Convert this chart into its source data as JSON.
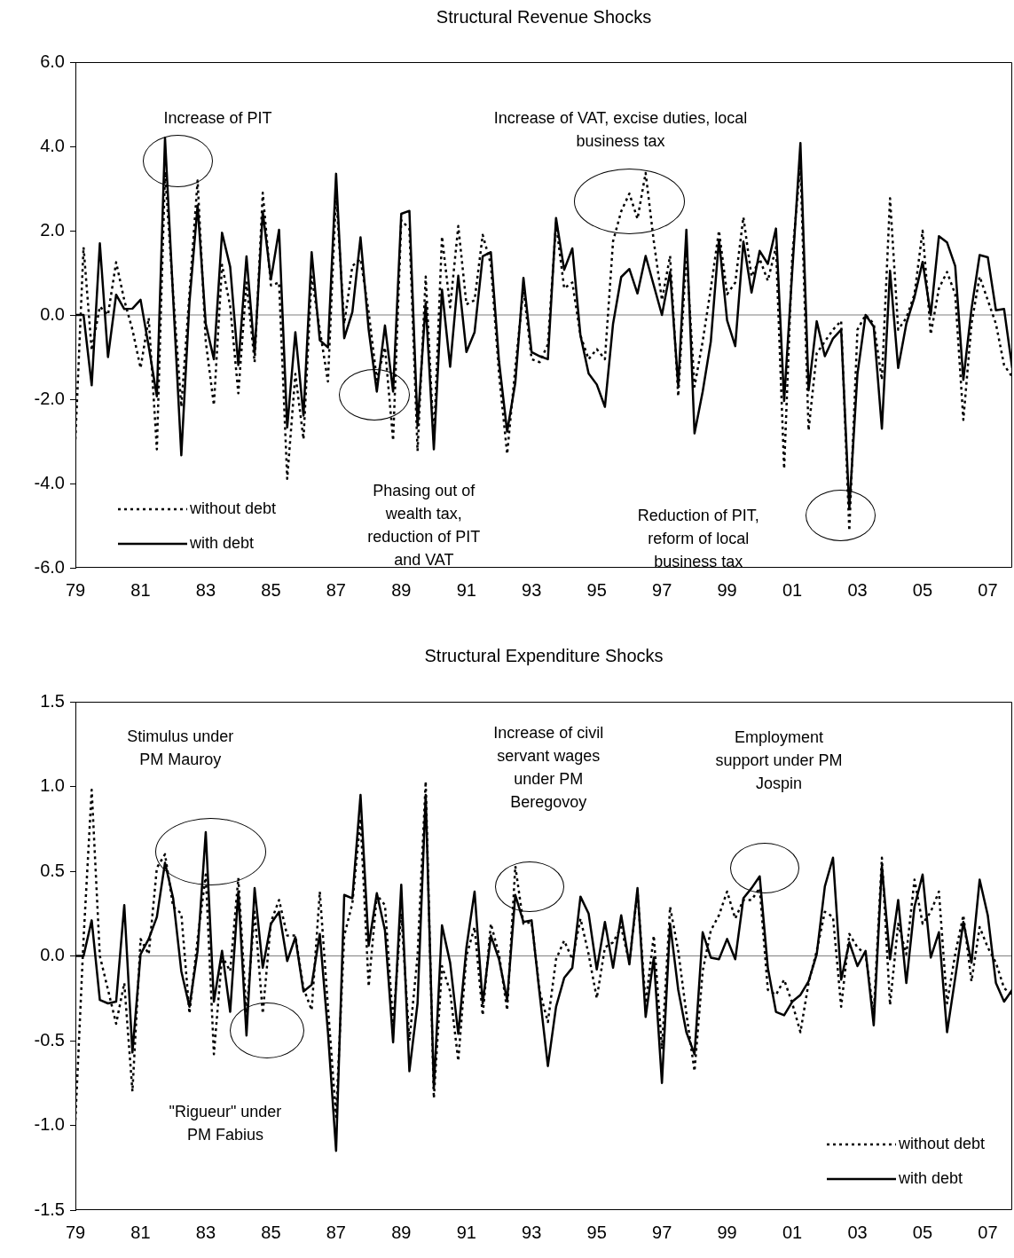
{
  "chart_data": [
    {
      "type": "line",
      "title": "Structural Revenue Shocks",
      "x": [
        1979,
        1979.25,
        1979.5,
        1979.75,
        1980,
        1980.25,
        1980.5,
        1980.75,
        1981,
        1981.25,
        1981.5,
        1981.75,
        1982,
        1982.25,
        1982.5,
        1982.75,
        1983,
        1983.25,
        1983.5,
        1983.75,
        1984,
        1984.25,
        1984.5,
        1984.75,
        1985,
        1985.25,
        1985.5,
        1985.75,
        1986,
        1986.25,
        1986.5,
        1986.75,
        1987,
        1987.25,
        1987.5,
        1987.75,
        1988,
        1988.25,
        1988.5,
        1988.75,
        1989,
        1989.25,
        1989.5,
        1989.75,
        1990,
        1990.25,
        1990.5,
        1990.75,
        1991,
        1991.25,
        1991.5,
        1991.75,
        1992,
        1992.25,
        1992.5,
        1992.75,
        1993,
        1993.25,
        1993.5,
        1993.75,
        1994,
        1994.25,
        1994.5,
        1994.75,
        1995,
        1995.25,
        1995.5,
        1995.75,
        1996,
        1996.25,
        1996.5,
        1996.75,
        1997,
        1997.25,
        1997.5,
        1997.75,
        1998,
        1998.25,
        1998.5,
        1998.75,
        1999,
        1999.25,
        1999.5,
        1999.75,
        2000,
        2000.25,
        2000.5,
        2000.75,
        2001,
        2001.25,
        2001.5,
        2001.75,
        2002,
        2002.25,
        2002.5,
        2002.75,
        2003,
        2003.25,
        2003.5,
        2003.75,
        2004,
        2004.25,
        2004.5,
        2004.75,
        2005,
        2005.25,
        2005.5,
        2005.75,
        2006,
        2006.25,
        2006.5,
        2006.75,
        2007,
        2007.25,
        2007.5,
        2007.75
      ],
      "series": [
        {
          "name": "without debt",
          "color": "#000000",
          "line_style": "dotted",
          "values": [
            -2.95,
            1.61,
            -0.84,
            0.2,
            0,
            1.25,
            0.35,
            -0.35,
            -1.26,
            -0.07,
            -3.19,
            3.4,
            0.5,
            -2.18,
            0.5,
            3.19,
            -0.63,
            -2.14,
            1.19,
            0.21,
            -1.86,
            0.77,
            -1.12,
            2.9,
            0.7,
            0.77,
            -3.89,
            -1.4,
            -2.95,
            0.91,
            -0.35,
            -1.58,
            2.88,
            -0.21,
            1.16,
            1.33,
            0.07,
            -1.54,
            -0.77,
            -2.98,
            2.25,
            2.04,
            -3.23,
            0.91,
            -3.0,
            1.86,
            0.18,
            2.11,
            0.25,
            0.35,
            1.9,
            1.2,
            -1.4,
            -3.3,
            -1.26,
            0.63,
            -1.05,
            -1.12,
            -0.7,
            2.18,
            0.63,
            0.77,
            -0.49,
            -1.05,
            -0.81,
            -1.05,
            1.75,
            2.46,
            2.88,
            2.28,
            3.37,
            1.75,
            0.35,
            1.4,
            -1.93,
            1.47,
            -1.7,
            -0.63,
            0.63,
            2.0,
            0.49,
            0.77,
            2.32,
            0.91,
            1.33,
            0.81,
            1.61,
            -3.65,
            1.4,
            3.58,
            -2.74,
            -0.91,
            -0.63,
            -0.35,
            -0.14,
            -5.12,
            -0.35,
            0,
            -0.21,
            -1.54,
            2.77,
            -0.35,
            -0.07,
            0.49,
            2.0,
            -0.46,
            0.63,
            1.02,
            0.49,
            -2.49,
            -0.21,
            0.91,
            0.35,
            -0.21,
            -1.19,
            -1.47
          ]
        },
        {
          "name": "with debt",
          "color": "#000000",
          "line_style": "solid",
          "values": [
            0,
            0,
            -1.67,
            1.7,
            -1.0,
            0.48,
            0.14,
            0.15,
            0.36,
            -0.75,
            -1.93,
            4.2,
            0.4,
            -3.33,
            0.3,
            2.6,
            -0.21,
            -1.05,
            1.95,
            1.14,
            -1.19,
            1.39,
            -0.91,
            2.45,
            0.84,
            2.02,
            -2.67,
            -0.41,
            -2.39,
            1.49,
            -0.6,
            -0.77,
            3.35,
            -0.55,
            0.07,
            1.84,
            -0.35,
            -1.82,
            -0.25,
            -1.82,
            2.4,
            2.47,
            -2.63,
            0.28,
            -3.19,
            0.6,
            -1.23,
            0.93,
            -0.88,
            -0.41,
            1.39,
            1.49,
            -1.1,
            -2.77,
            -1.61,
            0.88,
            -0.88,
            -0.98,
            -1.05,
            2.3,
            1.07,
            1.58,
            -0.49,
            -1.39,
            -1.65,
            -2.18,
            -0.21,
            0.9,
            1.09,
            0.51,
            1.4,
            0.7,
            0,
            1.02,
            -1.68,
            2.02,
            -2.81,
            -1.82,
            -0.63,
            1.79,
            -0.13,
            -0.74,
            1.74,
            0.53,
            1.52,
            1.21,
            2.05,
            -2.04,
            1.05,
            4.08,
            -1.79,
            -0.15,
            -0.98,
            -0.56,
            -0.35,
            -4.6,
            -1.4,
            0,
            -0.28,
            -2.7,
            1.05,
            -1.26,
            -0.21,
            0.42,
            1.26,
            0,
            1.87,
            1.72,
            1.16,
            -1.54,
            0.14,
            1.42,
            1.37,
            0.11,
            0.14,
            -1.26
          ]
        }
      ],
      "xlim": [
        1979,
        2007.75
      ],
      "xticks": [
        {
          "value": 1979,
          "label": "79"
        },
        {
          "value": 1981,
          "label": "81"
        },
        {
          "value": 1983,
          "label": "83"
        },
        {
          "value": 1985,
          "label": "85"
        },
        {
          "value": 1987,
          "label": "87"
        },
        {
          "value": 1989,
          "label": "89"
        },
        {
          "value": 1991,
          "label": "91"
        },
        {
          "value": 1993,
          "label": "93"
        },
        {
          "value": 1995,
          "label": "95"
        },
        {
          "value": 1997,
          "label": "97"
        },
        {
          "value": 1999,
          "label": "99"
        },
        {
          "value": 2001,
          "label": "01"
        },
        {
          "value": 2003,
          "label": "03"
        },
        {
          "value": 2005,
          "label": "05"
        },
        {
          "value": 2007,
          "label": "07"
        }
      ],
      "ylim": [
        -6,
        6
      ],
      "yticks": [
        {
          "value": -6,
          "label": "-6.0"
        },
        {
          "value": -4,
          "label": "-4.0"
        },
        {
          "value": -2,
          "label": "-2.0"
        },
        {
          "value": 0,
          "label": "0.0"
        },
        {
          "value": 2,
          "label": "2.0"
        },
        {
          "value": 4,
          "label": "4.0"
        },
        {
          "value": 6,
          "label": "6.0"
        }
      ],
      "ref_lines": [
        {
          "axis": "y",
          "value": 0,
          "color": "#808080"
        }
      ],
      "annotations": [
        "Increase of PIT",
        "Increase of VAT, excise duties, local business tax",
        "Phasing out of wealth tax, reduction of PIT and VAT",
        "Reduction of PIT, reform of local business tax"
      ],
      "legend": "bottom left",
      "marker": "none"
    },
    {
      "type": "line",
      "title": "Structural Expenditure Shocks",
      "x": [
        1979,
        1979.25,
        1979.5,
        1979.75,
        1980,
        1980.25,
        1980.5,
        1980.75,
        1981,
        1981.25,
        1981.5,
        1981.75,
        1982,
        1982.25,
        1982.5,
        1982.75,
        1983,
        1983.25,
        1983.5,
        1983.75,
        1984,
        1984.25,
        1984.5,
        1984.75,
        1985,
        1985.25,
        1985.5,
        1985.75,
        1986,
        1986.25,
        1986.5,
        1986.75,
        1987,
        1987.25,
        1987.5,
        1987.75,
        1988,
        1988.25,
        1988.5,
        1988.75,
        1989,
        1989.25,
        1989.5,
        1989.75,
        1990,
        1990.25,
        1990.5,
        1990.75,
        1991,
        1991.25,
        1991.5,
        1991.75,
        1992,
        1992.25,
        1992.5,
        1992.75,
        1993,
        1993.25,
        1993.5,
        1993.75,
        1994,
        1994.25,
        1994.5,
        1994.75,
        1995,
        1995.25,
        1995.5,
        1995.75,
        1996,
        1996.25,
        1996.5,
        1996.75,
        1997,
        1997.25,
        1997.5,
        1997.75,
        1998,
        1998.25,
        1998.5,
        1998.75,
        1999,
        1999.25,
        1999.5,
        1999.75,
        2000,
        2000.25,
        2000.5,
        2000.75,
        2001,
        2001.25,
        2001.5,
        2001.75,
        2002,
        2002.25,
        2002.5,
        2002.75,
        2003,
        2003.25,
        2003.5,
        2003.75,
        2004,
        2004.25,
        2004.5,
        2004.75,
        2005,
        2005.25,
        2005.5,
        2005.75,
        2006,
        2006.25,
        2006.5,
        2006.75,
        2007,
        2007.25,
        2007.5,
        2007.75
      ],
      "series": [
        {
          "name": "without debt",
          "color": "#000000",
          "line_style": "dotted",
          "values": [
            -0.97,
            0.1,
            0.98,
            0,
            -0.2,
            -0.4,
            -0.16,
            -0.8,
            0.1,
            0.01,
            0.52,
            0.6,
            0.29,
            0.25,
            -0.34,
            0.1,
            0.48,
            -0.58,
            0,
            -0.09,
            0.46,
            -0.34,
            0.26,
            -0.34,
            0.2,
            0.33,
            0.12,
            0.12,
            -0.19,
            -0.32,
            0.38,
            -0.3,
            -0.95,
            0.12,
            0.31,
            0.81,
            -0.18,
            0.36,
            0.3,
            -0.4,
            0.25,
            -0.5,
            0,
            1.03,
            -0.84,
            -0.06,
            -0.21,
            -0.62,
            0,
            0.17,
            -0.35,
            0.19,
            0.01,
            -0.32,
            0.53,
            0.19,
            0.2,
            -0.21,
            -0.39,
            -0.02,
            0.09,
            -0.02,
            0.22,
            0.01,
            -0.25,
            0.05,
            0.08,
            0.17,
            -0.04,
            0.38,
            -0.28,
            0.12,
            -0.55,
            0.29,
            0.03,
            -0.34,
            -0.68,
            -0.09,
            0.15,
            0.24,
            0.38,
            0.22,
            0.33,
            0.33,
            0.4,
            -0.2,
            -0.23,
            -0.14,
            -0.28,
            -0.45,
            -0.16,
            0.03,
            0.26,
            0.23,
            -0.3,
            0.13,
            0.05,
            0.01,
            -0.34,
            0.58,
            -0.29,
            0.19,
            0.01,
            0.45,
            0.19,
            0.26,
            0.38,
            -0.28,
            0.01,
            0.24,
            -0.15,
            0.17,
            0.05,
            -0.04,
            -0.19,
            -0.23
          ]
        },
        {
          "name": "with debt",
          "color": "#000000",
          "line_style": "solid",
          "values": [
            0,
            0,
            0.21,
            -0.26,
            -0.28,
            -0.27,
            0.3,
            -0.57,
            0.01,
            0.1,
            0.23,
            0.55,
            0.34,
            -0.09,
            -0.3,
            0.03,
            0.73,
            -0.27,
            0.03,
            -0.33,
            0.38,
            -0.47,
            0.4,
            -0.07,
            0.19,
            0.26,
            -0.03,
            0.11,
            -0.21,
            -0.17,
            0.13,
            -0.45,
            -1.15,
            0.36,
            0.34,
            0.95,
            0.06,
            0.37,
            0.15,
            -0.51,
            0.42,
            -0.68,
            -0.28,
            0.95,
            -0.78,
            0.18,
            -0.04,
            -0.46,
            0.05,
            0.38,
            -0.28,
            0.12,
            -0.02,
            -0.26,
            0.36,
            0.2,
            0.21,
            -0.23,
            -0.65,
            -0.3,
            -0.13,
            -0.07,
            0.35,
            0.25,
            -0.08,
            0.2,
            -0.07,
            0.24,
            -0.05,
            0.4,
            -0.36,
            -0.01,
            -0.75,
            0.19,
            -0.2,
            -0.45,
            -0.58,
            0.14,
            -0.01,
            -0.02,
            0.1,
            -0.02,
            0.34,
            0.4,
            0.47,
            -0.07,
            -0.33,
            -0.35,
            -0.27,
            -0.23,
            -0.15,
            0.01,
            0.41,
            0.58,
            -0.14,
            0.08,
            -0.06,
            0.03,
            -0.41,
            0.53,
            -0.02,
            0.33,
            -0.16,
            0.29,
            0.48,
            -0.01,
            0.14,
            -0.45,
            -0.13,
            0.2,
            -0.04,
            0.45,
            0.24,
            -0.16,
            -0.27,
            -0.2
          ]
        }
      ],
      "xlim": [
        1979,
        2007.75
      ],
      "xticks": [
        {
          "value": 1979,
          "label": "79"
        },
        {
          "value": 1981,
          "label": "81"
        },
        {
          "value": 1983,
          "label": "83"
        },
        {
          "value": 1985,
          "label": "85"
        },
        {
          "value": 1987,
          "label": "87"
        },
        {
          "value": 1989,
          "label": "89"
        },
        {
          "value": 1991,
          "label": "91"
        },
        {
          "value": 1993,
          "label": "93"
        },
        {
          "value": 1995,
          "label": "95"
        },
        {
          "value": 1997,
          "label": "97"
        },
        {
          "value": 1999,
          "label": "99"
        },
        {
          "value": 2001,
          "label": "01"
        },
        {
          "value": 2003,
          "label": "03"
        },
        {
          "value": 2005,
          "label": "05"
        },
        {
          "value": 2007,
          "label": "07"
        }
      ],
      "ylim": [
        -1.5,
        1.5
      ],
      "yticks": [
        {
          "value": -1.5,
          "label": "-1.5"
        },
        {
          "value": -1,
          "label": "-1.0"
        },
        {
          "value": -0.5,
          "label": "-0.5"
        },
        {
          "value": 0,
          "label": "0.0"
        },
        {
          "value": 0.5,
          "label": "0.5"
        },
        {
          "value": 1,
          "label": "1.0"
        },
        {
          "value": 1.5,
          "label": "1.5"
        }
      ],
      "ref_lines": [
        {
          "axis": "y",
          "value": 0,
          "color": "#808080"
        }
      ],
      "annotations": [
        "Stimulus under PM Mauroy",
        "\"Rigueur\" under PM Fabius",
        "Increase of civil servant wages under PM Beregovoy",
        "Employment support under PM Jospin"
      ],
      "legend": "bottom right",
      "marker": "none"
    }
  ]
}
